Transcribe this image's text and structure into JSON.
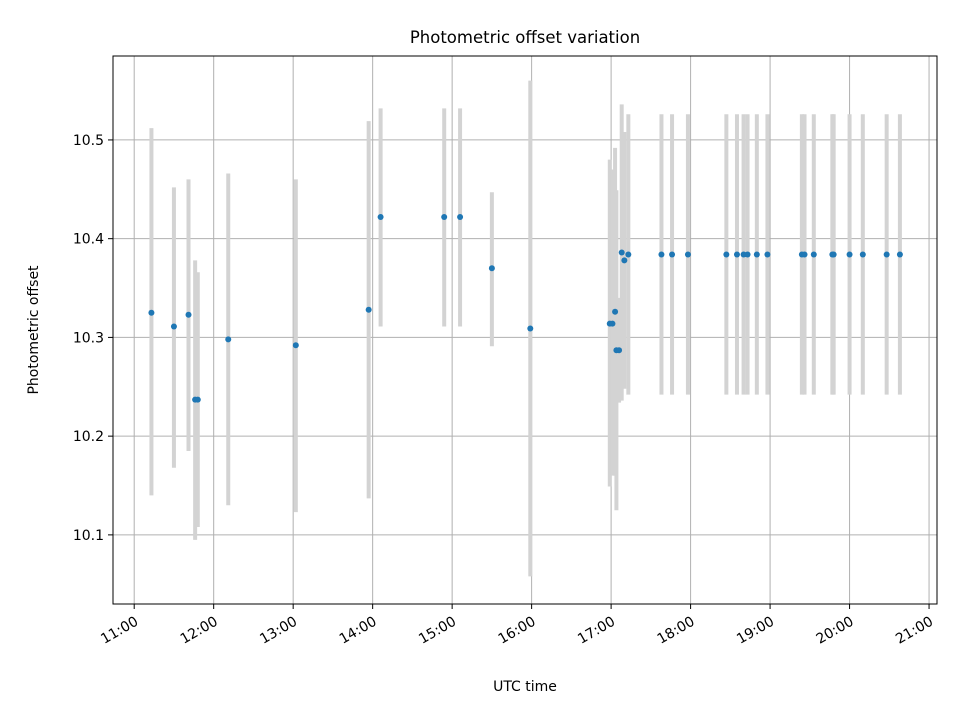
{
  "chart_data": {
    "type": "scatter",
    "title": "Photometric offset variation",
    "xlabel": "UTC time",
    "ylabel": "Photometric offset",
    "x_ticks": [
      "11:00",
      "12:00",
      "13:00",
      "14:00",
      "15:00",
      "16:00",
      "17:00",
      "18:00",
      "19:00",
      "20:00",
      "21:00"
    ],
    "y_ticks": [
      "10.1",
      "10.2",
      "10.3",
      "10.4",
      "10.5"
    ],
    "xlim": [
      "10:44",
      "21:06"
    ],
    "ylim": [
      10.03,
      10.585
    ],
    "grid": true,
    "colors": {
      "point": "#1f77b4",
      "errorbar": "#d3d3d3",
      "grid": "#b0b0b0"
    },
    "points": [
      {
        "x": "11:13",
        "y": 10.325,
        "low": 10.14,
        "high": 10.512
      },
      {
        "x": "11:30",
        "y": 10.311,
        "low": 10.168,
        "high": 10.452
      },
      {
        "x": "11:41",
        "y": 10.323,
        "low": 10.185,
        "high": 10.46
      },
      {
        "x": "11:46",
        "y": 10.237,
        "low": 10.095,
        "high": 10.378
      },
      {
        "x": "11:48",
        "y": 10.237,
        "low": 10.108,
        "high": 10.366
      },
      {
        "x": "12:11",
        "y": 10.298,
        "low": 10.13,
        "high": 10.466
      },
      {
        "x": "13:02",
        "y": 10.292,
        "low": 10.123,
        "high": 10.46
      },
      {
        "x": "13:57",
        "y": 10.328,
        "low": 10.137,
        "high": 10.519
      },
      {
        "x": "14:06",
        "y": 10.422,
        "low": 10.311,
        "high": 10.532
      },
      {
        "x": "14:54",
        "y": 10.422,
        "low": 10.311,
        "high": 10.532
      },
      {
        "x": "15:06",
        "y": 10.422,
        "low": 10.311,
        "high": 10.532
      },
      {
        "x": "15:30",
        "y": 10.37,
        "low": 10.291,
        "high": 10.447
      },
      {
        "x": "15:59",
        "y": 10.309,
        "low": 10.058,
        "high": 10.56
      },
      {
        "x": "16:59",
        "y": 10.314,
        "low": 10.149,
        "high": 10.48
      },
      {
        "x": "17:01",
        "y": 10.314,
        "low": 10.16,
        "high": 10.47
      },
      {
        "x": "17:03",
        "y": 10.326,
        "low": 10.16,
        "high": 10.492
      },
      {
        "x": "17:04",
        "y": 10.287,
        "low": 10.125,
        "high": 10.449
      },
      {
        "x": "17:06",
        "y": 10.287,
        "low": 10.234,
        "high": 10.34
      },
      {
        "x": "17:08",
        "y": 10.386,
        "low": 10.236,
        "high": 10.536
      },
      {
        "x": "17:10",
        "y": 10.378,
        "low": 10.248,
        "high": 10.508
      },
      {
        "x": "17:13",
        "y": 10.384,
        "low": 10.242,
        "high": 10.526
      },
      {
        "x": "17:38",
        "y": 10.384,
        "low": 10.242,
        "high": 10.526
      },
      {
        "x": "17:46",
        "y": 10.384,
        "low": 10.242,
        "high": 10.526
      },
      {
        "x": "17:58",
        "y": 10.384,
        "low": 10.242,
        "high": 10.526
      },
      {
        "x": "18:27",
        "y": 10.384,
        "low": 10.242,
        "high": 10.526
      },
      {
        "x": "18:35",
        "y": 10.384,
        "low": 10.242,
        "high": 10.526
      },
      {
        "x": "18:40",
        "y": 10.384,
        "low": 10.242,
        "high": 10.526
      },
      {
        "x": "18:43",
        "y": 10.384,
        "low": 10.242,
        "high": 10.526
      },
      {
        "x": "18:50",
        "y": 10.384,
        "low": 10.242,
        "high": 10.526
      },
      {
        "x": "18:58",
        "y": 10.384,
        "low": 10.242,
        "high": 10.526
      },
      {
        "x": "19:24",
        "y": 10.384,
        "low": 10.242,
        "high": 10.526
      },
      {
        "x": "19:26",
        "y": 10.384,
        "low": 10.242,
        "high": 10.526
      },
      {
        "x": "19:33",
        "y": 10.384,
        "low": 10.242,
        "high": 10.526
      },
      {
        "x": "19:47",
        "y": 10.384,
        "low": 10.242,
        "high": 10.526
      },
      {
        "x": "19:48",
        "y": 10.384,
        "low": 10.242,
        "high": 10.526
      },
      {
        "x": "20:00",
        "y": 10.384,
        "low": 10.242,
        "high": 10.526
      },
      {
        "x": "20:10",
        "y": 10.384,
        "low": 10.242,
        "high": 10.526
      },
      {
        "x": "20:28",
        "y": 10.384,
        "low": 10.242,
        "high": 10.526
      },
      {
        "x": "20:38",
        "y": 10.384,
        "low": 10.242,
        "high": 10.526
      }
    ]
  }
}
